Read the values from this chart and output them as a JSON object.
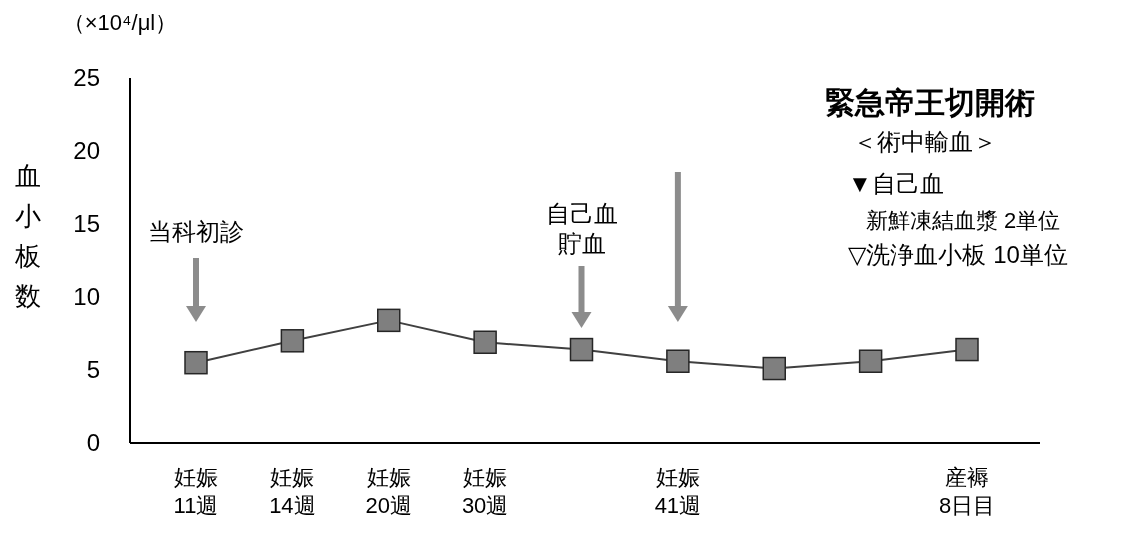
{
  "chart_data": {
    "type": "line",
    "title": "緊急帝王切開術",
    "ylabel": "血小板数",
    "categories": [
      "妊娠\n11週",
      "妊娠\n14週",
      "妊娠\n20週",
      "妊娠\n30週",
      null,
      "妊娠\n41週",
      null,
      null,
      "産褥\n8日目"
    ],
    "series": [
      {
        "color": "#404040",
        "values": [
          5.5,
          7.0,
          8.4,
          6.9,
          6.4,
          5.6,
          5.1,
          5.6,
          6.4
        ]
      }
    ],
    "marker": "square",
    "ylim": [
      0,
      25
    ],
    "yticks": [
      0,
      5,
      10,
      15,
      20,
      25
    ],
    "grid": false,
    "annotations": [
      "（×10⁴/μl）",
      "当科初診",
      "自己血",
      "貯血",
      "＜術中輸血＞",
      "▼自己血",
      "新鮮凍結血漿 2単位",
      "▽洗浄血小板 10単位"
    ]
  }
}
